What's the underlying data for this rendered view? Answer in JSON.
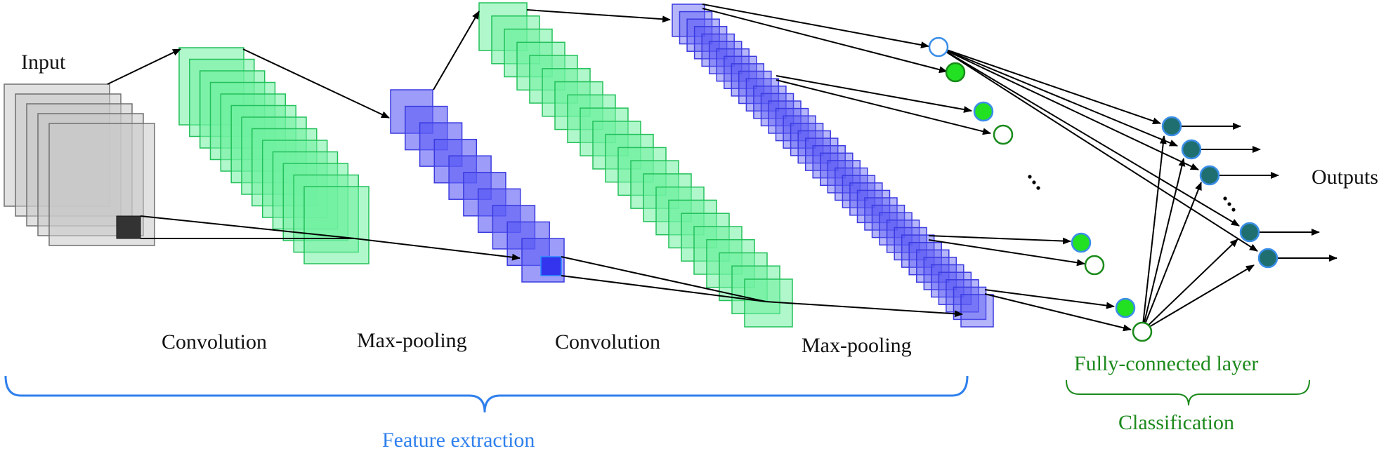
{
  "labels": {
    "input": "Input",
    "convolution_1": "Convolution",
    "max_pooling_1": "Max-pooling",
    "convolution_2": "Convolution",
    "max_pooling_2": "Max-pooling",
    "outputs": "Outputs",
    "fully_connected": "Fully-connected layer",
    "feature_extraction": "Feature extraction",
    "classification": "Classification"
  },
  "colors": {
    "input_fill": "#c8c8c8",
    "input_stroke": "#707070",
    "conv_fill": "#6ff0a0",
    "conv_stroke": "#22c05a",
    "pool_fill": "#5b5bf5",
    "pool_stroke": "#3a3ae0",
    "node_green": "#22e022",
    "node_teal": "#1f6f70",
    "node_stroke_blue": "#3a8ee8",
    "node_stroke_green": "#1a8a1a",
    "feature_brace": "#2f80ed",
    "classification_color": "#1d8a1d",
    "arrow": "#000000"
  },
  "layers": [
    {
      "name": "Input",
      "kind": "input"
    },
    {
      "name": "Convolution",
      "kind": "convolution"
    },
    {
      "name": "Max-pooling",
      "kind": "pooling"
    },
    {
      "name": "Convolution",
      "kind": "convolution"
    },
    {
      "name": "Max-pooling",
      "kind": "pooling"
    },
    {
      "name": "Fully-connected layer",
      "kind": "dense"
    }
  ]
}
